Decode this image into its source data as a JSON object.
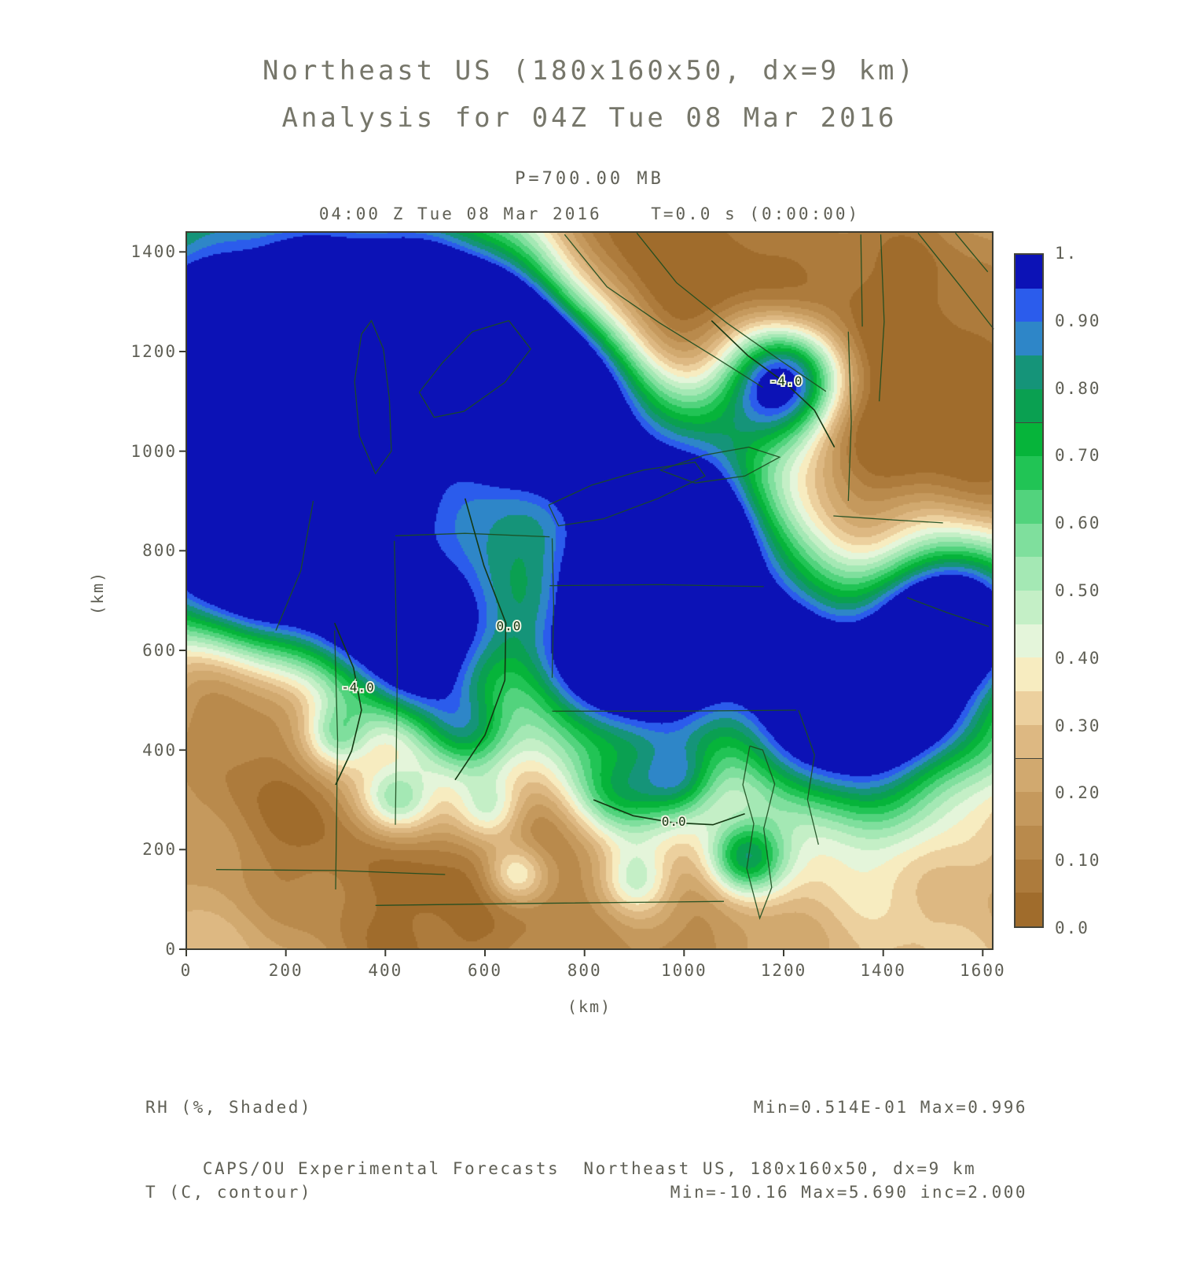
{
  "title": {
    "line1": "Northeast US (180x160x50, dx=9 km)",
    "line2": "Analysis for 04Z Tue 08 Mar 2016"
  },
  "subtitle": "P=700.00 MB",
  "time_line": "04:00 Z Tue 08 Mar 2016    T=0.0 s (0:00:00)",
  "axes": {
    "x_label": "(km)",
    "y_label": "(km)",
    "x_ticks": [
      0,
      200,
      400,
      600,
      800,
      1000,
      1200,
      1400,
      1600
    ],
    "y_ticks": [
      0,
      200,
      400,
      600,
      800,
      1000,
      1200,
      1400
    ]
  },
  "colorbar": {
    "labels": [
      "1.",
      "0.90",
      "0.80",
      "0.70",
      "0.60",
      "0.50",
      "0.40",
      "0.30",
      "0.20",
      "0.10",
      "0.0"
    ],
    "colors": [
      "#a06c2c",
      "#ad7b3c",
      "#b98a4c",
      "#c5995d",
      "#d1a96f",
      "#ddb882",
      "#ecd09e",
      "#f7ecc0",
      "#e4f5da",
      "#c4efc6",
      "#a4e8b4",
      "#7fdf9d",
      "#52d37d",
      "#21c455",
      "#06b43a",
      "#0aa051",
      "#159479",
      "#2e86c8",
      "#2b5cec",
      "#0c12b6"
    ]
  },
  "legend": {
    "shaded": "RH (%, Shaded)",
    "contour": "T (C, contour)",
    "shaded_stats": "Min=0.514E-01 Max=0.996",
    "contour_stats": "Min=-10.16 Max=5.690 inc=2.000"
  },
  "footer": "CAPS/OU Experimental Forecasts  Northeast US, 180x160x50, dx=9 km",
  "chart_data": {
    "type": "heatmap",
    "title": "Northeast US (180x160x50, dx=9 km) Analysis for 04Z Tue 08 Mar 2016",
    "level": "P=700.00 MB",
    "valid_time": "04:00 Z Tue 08 Mar 2016",
    "forecast_time": "T=0.0 s (0:00:00)",
    "shaded_variable": "RH (%, Shaded)",
    "shaded_min": 0.0514,
    "shaded_max": 0.996,
    "contour_variable": "T (C, contour)",
    "contour_min": -10.16,
    "contour_max": 5.69,
    "contour_inc": 2.0,
    "x_range_km": [
      0,
      1620
    ],
    "y_range_km": [
      0,
      1440
    ],
    "shade_levels": "0.0 to 1.0 in steps of 0.05",
    "base_rh": 0.3,
    "rh_blobs": [
      {
        "x": 100,
        "y": 1200,
        "s": 230,
        "a": 0.95
      },
      {
        "x": 300,
        "y": 950,
        "s": 190,
        "a": 0.7
      },
      {
        "x": 120,
        "y": 780,
        "s": 150,
        "a": 0.75
      },
      {
        "x": 430,
        "y": 1280,
        "s": 140,
        "a": 0.55
      },
      {
        "x": 600,
        "y": 1250,
        "s": 120,
        "a": 0.75
      },
      {
        "x": 760,
        "y": 1180,
        "s": 110,
        "a": 0.55
      },
      {
        "x": 680,
        "y": 1050,
        "s": 130,
        "a": 0.5
      },
      {
        "x": 900,
        "y": 960,
        "s": 140,
        "a": 0.55
      },
      {
        "x": 1060,
        "y": 870,
        "s": 120,
        "a": 0.5
      },
      {
        "x": 885,
        "y": 600,
        "s": 150,
        "a": 0.95
      },
      {
        "x": 1000,
        "y": 700,
        "s": 120,
        "a": 0.5
      },
      {
        "x": 1195,
        "y": 1135,
        "s": 85,
        "a": 1.0
      },
      {
        "x": 1450,
        "y": 520,
        "s": 140,
        "a": 0.8
      },
      {
        "x": 1560,
        "y": 690,
        "s": 100,
        "a": 0.75
      },
      {
        "x": 1280,
        "y": 470,
        "s": 110,
        "a": 0.5
      },
      {
        "x": 1180,
        "y": 620,
        "s": 100,
        "a": 0.4
      },
      {
        "x": 460,
        "y": 560,
        "s": 80,
        "a": 0.55
      },
      {
        "x": 350,
        "y": 680,
        "s": 90,
        "a": 0.45
      },
      {
        "x": 560,
        "y": 430,
        "s": 70,
        "a": 0.4
      },
      {
        "x": 420,
        "y": 300,
        "s": 55,
        "a": 0.4
      },
      {
        "x": 610,
        "y": 280,
        "s": 50,
        "a": 0.35
      },
      {
        "x": 300,
        "y": 430,
        "s": 50,
        "a": 0.35
      },
      {
        "x": 660,
        "y": 150,
        "s": 45,
        "a": 0.35
      },
      {
        "x": 860,
        "y": 300,
        "s": 70,
        "a": 0.4
      },
      {
        "x": 990,
        "y": 340,
        "s": 55,
        "a": 0.35
      },
      {
        "x": 1120,
        "y": 180,
        "s": 55,
        "a": 0.5
      },
      {
        "x": 1340,
        "y": 280,
        "s": 170,
        "a": 0.18
      },
      {
        "x": 520,
        "y": 700,
        "s": 100,
        "a": 0.4
      },
      {
        "x": 900,
        "y": 140,
        "s": 50,
        "a": 0.3
      },
      {
        "x": 1050,
        "y": 1320,
        "s": 190,
        "a": -0.26
      },
      {
        "x": 870,
        "y": 1330,
        "s": 150,
        "a": -0.2
      },
      {
        "x": 1480,
        "y": 1280,
        "s": 220,
        "a": -0.2
      },
      {
        "x": 1600,
        "y": 1000,
        "s": 180,
        "a": -0.22
      },
      {
        "x": 1320,
        "y": 1020,
        "s": 130,
        "a": -0.15
      },
      {
        "x": 70,
        "y": 550,
        "s": 110,
        "a": -0.28
      },
      {
        "x": 200,
        "y": 280,
        "s": 140,
        "a": -0.18
      },
      {
        "x": 480,
        "y": 90,
        "s": 220,
        "a": -0.25
      },
      {
        "x": 1000,
        "y": 60,
        "s": 180,
        "a": -0.18
      },
      {
        "x": 720,
        "y": 240,
        "s": 90,
        "a": -0.12
      },
      {
        "x": 1620,
        "y": 170,
        "s": 150,
        "a": -0.12
      }
    ],
    "contour_lines": [
      {
        "label": "0.0",
        "label_at": [
          648,
          648
        ],
        "pts": [
          [
            560,
            905
          ],
          [
            598,
            770
          ],
          [
            642,
            655
          ],
          [
            640,
            540
          ],
          [
            600,
            430
          ],
          [
            540,
            340
          ]
        ]
      },
      {
        "label": "-4.0",
        "label_at": [
          1205,
          1140
        ],
        "pts": [
          [
            1055,
            1262
          ],
          [
            1128,
            1192
          ],
          [
            1202,
            1138
          ],
          [
            1262,
            1082
          ],
          [
            1302,
            1008
          ]
        ]
      },
      {
        "label": "-4.0",
        "label_at": [
          345,
          525
        ],
        "pts": [
          [
            298,
            655
          ],
          [
            336,
            565
          ],
          [
            352,
            480
          ],
          [
            332,
            398
          ],
          [
            300,
            330
          ]
        ]
      },
      {
        "label": "0.0",
        "label_at": [
          980,
          256
        ],
        "pts": [
          [
            818,
            300
          ],
          [
            898,
            268
          ],
          [
            978,
            254
          ],
          [
            1058,
            250
          ],
          [
            1122,
            272
          ]
        ]
      }
    ],
    "geo_lines": [
      {
        "name": "lake-michigan",
        "pts": [
          [
            352,
            1235
          ],
          [
            338,
            1140
          ],
          [
            348,
            1030
          ],
          [
            380,
            955
          ],
          [
            412,
            1000
          ],
          [
            408,
            1105
          ],
          [
            396,
            1205
          ],
          [
            372,
            1262
          ],
          [
            352,
            1235
          ]
        ]
      },
      {
        "name": "lake-huron",
        "pts": [
          [
            468,
            1118
          ],
          [
            515,
            1178
          ],
          [
            575,
            1240
          ],
          [
            648,
            1262
          ],
          [
            692,
            1205
          ],
          [
            640,
            1138
          ],
          [
            558,
            1080
          ],
          [
            498,
            1068
          ],
          [
            468,
            1118
          ]
        ]
      },
      {
        "name": "lake-erie",
        "pts": [
          [
            728,
            892
          ],
          [
            815,
            932
          ],
          [
            918,
            962
          ],
          [
            1022,
            978
          ],
          [
            1042,
            950
          ],
          [
            948,
            905
          ],
          [
            838,
            864
          ],
          [
            748,
            850
          ],
          [
            728,
            892
          ]
        ]
      },
      {
        "name": "lake-ontario",
        "pts": [
          [
            952,
            962
          ],
          [
            1040,
            992
          ],
          [
            1130,
            1008
          ],
          [
            1192,
            988
          ],
          [
            1122,
            950
          ],
          [
            1022,
            936
          ],
          [
            952,
            962
          ]
        ]
      },
      {
        "name": "border",
        "pts": [
          [
            420,
            250
          ],
          [
            424,
            560
          ],
          [
            418,
            820
          ]
        ]
      },
      {
        "name": "border",
        "pts": [
          [
            300,
            120
          ],
          [
            304,
            420
          ],
          [
            298,
            640
          ]
        ]
      },
      {
        "name": "border",
        "pts": [
          [
            735,
            545
          ],
          [
            738,
            690
          ],
          [
            735,
            825
          ]
        ]
      },
      {
        "name": "border",
        "pts": [
          [
            730,
            730
          ],
          [
            950,
            732
          ],
          [
            1160,
            728
          ]
        ]
      },
      {
        "name": "border",
        "pts": [
          [
            735,
            478
          ],
          [
            980,
            478
          ],
          [
            1225,
            480
          ]
        ]
      },
      {
        "name": "border",
        "pts": [
          [
            1330,
            1240
          ],
          [
            1336,
            1060
          ],
          [
            1330,
            900
          ]
        ]
      },
      {
        "name": "border",
        "pts": [
          [
            1355,
            1435
          ],
          [
            1358,
            1250
          ]
        ]
      },
      {
        "name": "border",
        "pts": [
          [
            1300,
            870
          ],
          [
            1420,
            862
          ],
          [
            1520,
            856
          ]
        ]
      },
      {
        "name": "border",
        "pts": [
          [
            60,
            160
          ],
          [
            300,
            158
          ],
          [
            520,
            150
          ]
        ]
      },
      {
        "name": "border",
        "pts": [
          [
            380,
            88
          ],
          [
            700,
            92
          ],
          [
            1080,
            96
          ]
        ]
      },
      {
        "name": "chesapeake-bay",
        "pts": [
          [
            1132,
            408
          ],
          [
            1118,
            330
          ],
          [
            1140,
            252
          ],
          [
            1126,
            162
          ],
          [
            1152,
            62
          ],
          [
            1176,
            124
          ],
          [
            1160,
            242
          ],
          [
            1182,
            332
          ],
          [
            1158,
            400
          ],
          [
            1132,
            408
          ]
        ]
      },
      {
        "name": "coast",
        "pts": [
          [
            1448,
            706
          ],
          [
            1528,
            676
          ],
          [
            1612,
            648
          ]
        ]
      },
      {
        "name": "river",
        "pts": [
          [
            760,
            1435
          ],
          [
            845,
            1330
          ],
          [
            950,
            1258
          ],
          [
            1060,
            1190
          ],
          [
            1158,
            1128
          ]
        ]
      },
      {
        "name": "river",
        "pts": [
          [
            905,
            1438
          ],
          [
            985,
            1338
          ],
          [
            1085,
            1258
          ],
          [
            1185,
            1188
          ],
          [
            1285,
            1120
          ]
        ]
      },
      {
        "name": "border",
        "pts": [
          [
            1470,
            1438
          ],
          [
            1556,
            1330
          ],
          [
            1622,
            1245
          ]
        ]
      },
      {
        "name": "border",
        "pts": [
          [
            1545,
            1438
          ],
          [
            1610,
            1360
          ]
        ]
      },
      {
        "name": "border",
        "pts": [
          [
            180,
            640
          ],
          [
            230,
            760
          ],
          [
            255,
            900
          ]
        ]
      },
      {
        "name": "border",
        "pts": [
          [
            420,
            830
          ],
          [
            560,
            835
          ],
          [
            730,
            828
          ]
        ]
      },
      {
        "name": "coast",
        "pts": [
          [
            1230,
            480
          ],
          [
            1262,
            390
          ],
          [
            1248,
            300
          ],
          [
            1270,
            210
          ]
        ]
      },
      {
        "name": "border",
        "pts": [
          [
            1395,
            1435
          ],
          [
            1402,
            1260
          ],
          [
            1392,
            1100
          ]
        ]
      }
    ]
  }
}
